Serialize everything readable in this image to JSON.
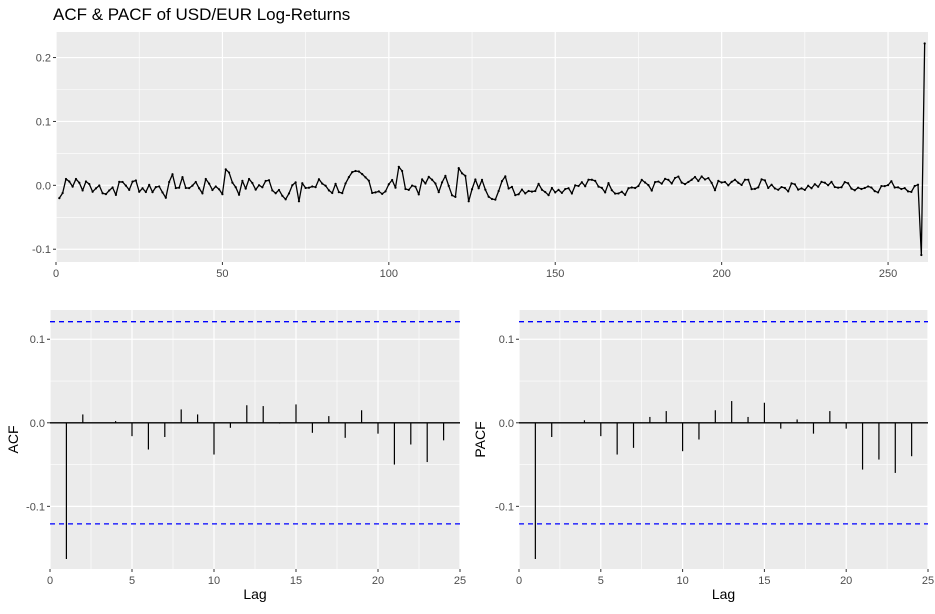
{
  "title": "ACF & PACF of USD/EUR Log-Returns",
  "colors": {
    "panel": "#ebebeb",
    "grid": "#ffffff",
    "line": "#000000",
    "ci": "#0000ff"
  },
  "chart_data": [
    {
      "type": "line",
      "name": "series",
      "xlim": [
        0,
        262
      ],
      "ylim": [
        -0.12,
        0.24
      ],
      "xticks": [
        0,
        50,
        100,
        150,
        200,
        250
      ],
      "yticks": [
        -0.1,
        0.0,
        0.1,
        0.2
      ],
      "xtick_labels": [
        "0",
        "50",
        "100",
        "150",
        "200",
        "250"
      ],
      "ytick_labels": [
        "-0.1",
        "0.0",
        "0.1",
        "0.2"
      ],
      "first_values": [
        -0.02,
        -0.012,
        0.01,
        0.006,
        -0.002,
        0.01,
        0.004,
        -0.008,
        0.006,
        0.002,
        -0.01
      ],
      "mid_highlights": [
        {
          "x": 51,
          "y": 0.025
        },
        {
          "x": 73,
          "y": -0.025
        },
        {
          "x": 103,
          "y": 0.029
        },
        {
          "x": 121,
          "y": 0.027
        },
        {
          "x": 124,
          "y": -0.025
        }
      ],
      "last_values": [
        {
          "x": 258,
          "y": -0.001
        },
        {
          "x": 259,
          "y": 0.001
        },
        {
          "x": 260,
          "y": -0.109
        },
        {
          "x": 261,
          "y": 0.222
        }
      ],
      "n": 261
    },
    {
      "type": "bar",
      "ylabel": "ACF",
      "xlabel": "Lag",
      "xlim": [
        0,
        25
      ],
      "ylim": [
        -0.175,
        0.135
      ],
      "xticks": [
        0,
        5,
        10,
        15,
        20,
        25
      ],
      "yticks": [
        -0.1,
        0.0,
        0.1
      ],
      "xtick_labels": [
        "0",
        "5",
        "10",
        "15",
        "20",
        "25"
      ],
      "ytick_labels": [
        "-0.1",
        "0.0",
        "0.1"
      ],
      "ci": 0.121,
      "lags": [
        1,
        2,
        3,
        4,
        5,
        6,
        7,
        8,
        9,
        10,
        11,
        12,
        13,
        14,
        15,
        16,
        17,
        18,
        19,
        20,
        21,
        22,
        23,
        24
      ],
      "values": [
        -0.163,
        0.01,
        0.0,
        0.002,
        -0.016,
        -0.032,
        -0.017,
        0.016,
        0.01,
        -0.038,
        -0.006,
        0.021,
        0.02,
        -0.001,
        0.022,
        -0.012,
        0.008,
        -0.018,
        0.015,
        -0.013,
        -0.05,
        -0.026,
        -0.047,
        -0.021
      ]
    },
    {
      "type": "bar",
      "ylabel": "PACF",
      "xlabel": "Lag",
      "xlim": [
        0,
        25
      ],
      "ylim": [
        -0.175,
        0.135
      ],
      "xticks": [
        0,
        5,
        10,
        15,
        20,
        25
      ],
      "yticks": [
        -0.1,
        0.0,
        0.1
      ],
      "xtick_labels": [
        "0",
        "5",
        "10",
        "15",
        "20",
        "25"
      ],
      "ytick_labels": [
        "-0.1",
        "0.0",
        "0.1"
      ],
      "ci": 0.121,
      "lags": [
        1,
        2,
        3,
        4,
        5,
        6,
        7,
        8,
        9,
        10,
        11,
        12,
        13,
        14,
        15,
        16,
        17,
        18,
        19,
        20,
        21,
        22,
        23,
        24
      ],
      "values": [
        -0.163,
        -0.017,
        0.0,
        0.003,
        -0.016,
        -0.038,
        -0.03,
        0.007,
        0.014,
        -0.034,
        -0.02,
        0.015,
        0.026,
        0.007,
        0.024,
        -0.007,
        0.004,
        -0.013,
        0.014,
        -0.007,
        -0.056,
        -0.044,
        -0.06,
        -0.04
      ]
    }
  ]
}
